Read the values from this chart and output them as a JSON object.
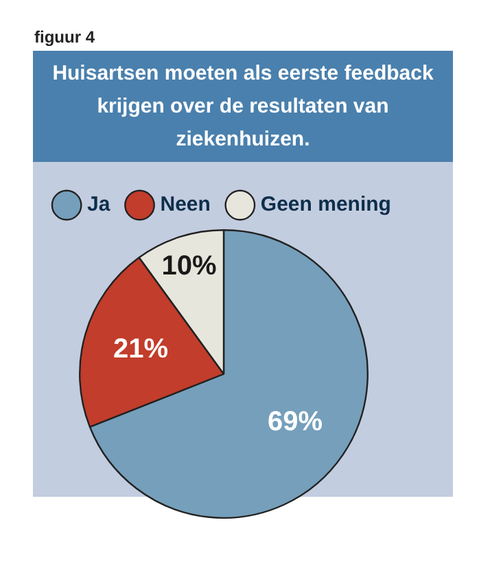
{
  "chart_data": {
    "type": "pie",
    "title": "Huisartsen moeten als eerste feedback krijgen over de resultaten van ziekenhuizen.",
    "annotations": [
      "figuur 4"
    ],
    "categories": [
      "Ja",
      "Neen",
      "Geen mening"
    ],
    "values": [
      69,
      21,
      10
    ],
    "value_labels": [
      "69%",
      "21%",
      "10%"
    ],
    "colors": [
      "#759fbb",
      "#c23d2b",
      "#e6e6dc"
    ],
    "legend": "top"
  }
}
